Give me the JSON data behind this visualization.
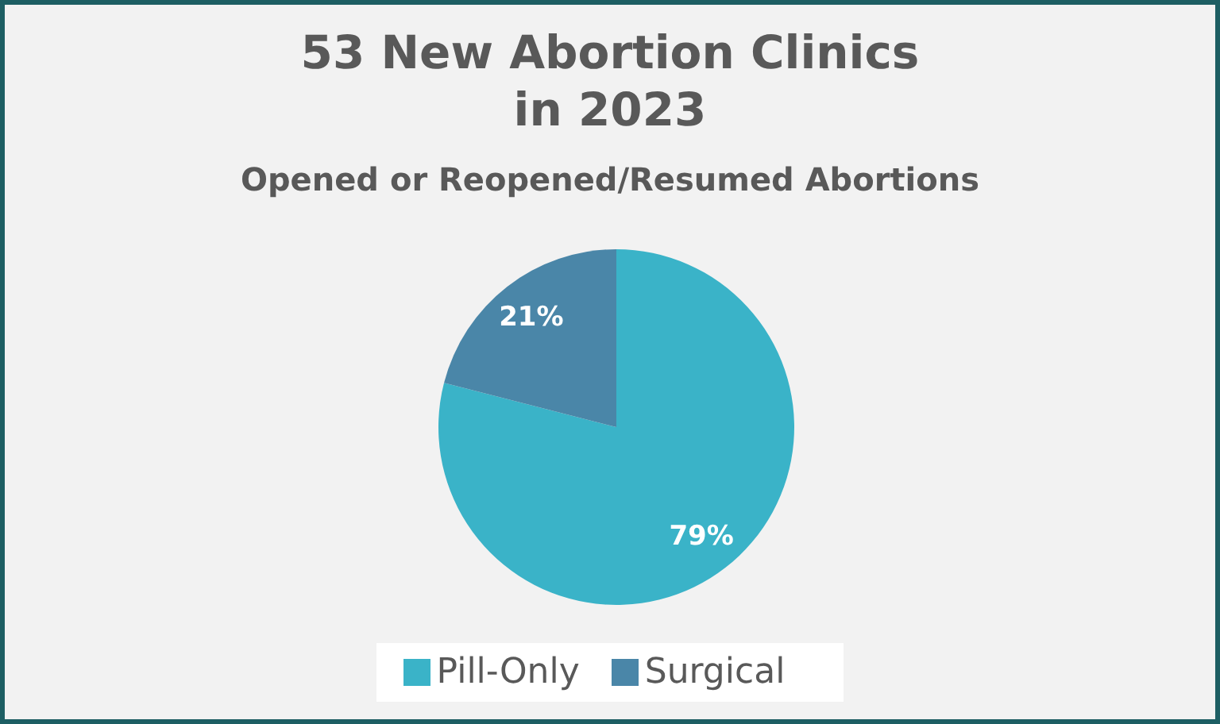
{
  "chart_data": {
    "type": "pie",
    "title": "53 New Abortion Clinics\nin 2023",
    "subtitle": "Opened or Reopened/Resumed Abortions",
    "categories": [
      "Pill-Only",
      "Surgical"
    ],
    "values": [
      79,
      21
    ],
    "colors": [
      "#3ab3c8",
      "#4a86a8"
    ],
    "value_labels": [
      "79%",
      "21%"
    ],
    "legend": "bottom"
  }
}
